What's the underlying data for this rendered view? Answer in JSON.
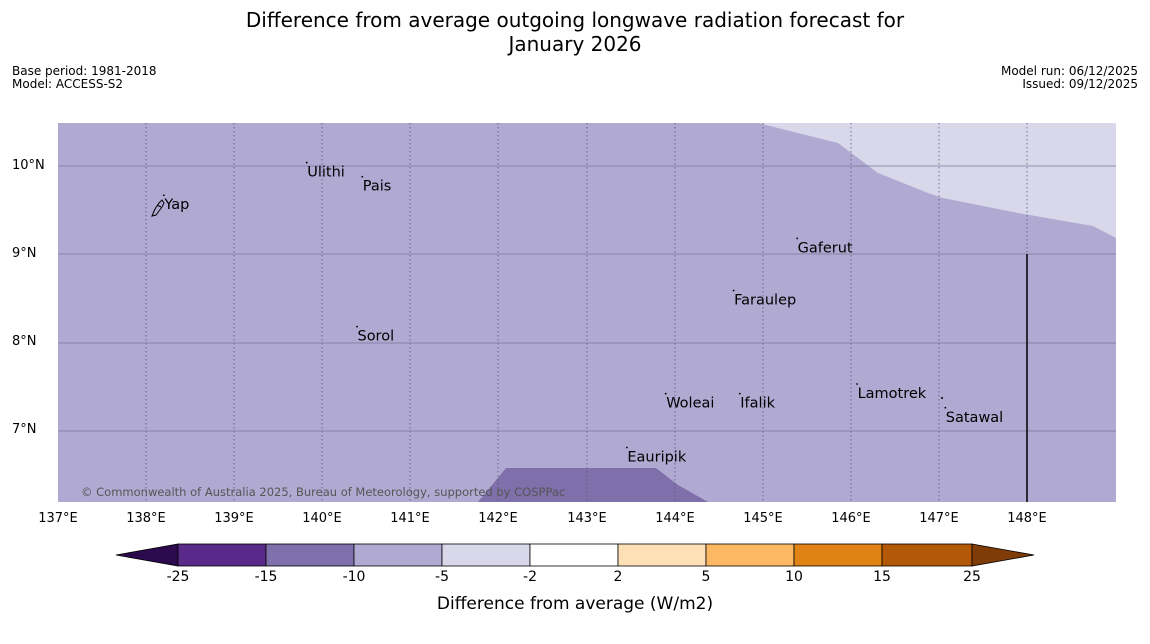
{
  "title_line1": "Difference from average outgoing longwave radiation forecast for",
  "title_line2": "January 2026",
  "meta_left": [
    "Base period: 1981-2018",
    "Model: ACCESS-S2"
  ],
  "meta_right": [
    "Model run: 06/12/2025",
    "Issued: 09/12/2025"
  ],
  "lat_ticks": [
    "10°N",
    "9°N",
    "8°N",
    "7°N"
  ],
  "lon_ticks": [
    "137°E",
    "138°E",
    "139°E",
    "140°E",
    "141°E",
    "142°E",
    "143°E",
    "144°E",
    "145°E",
    "146°E",
    "147°E",
    "148°E"
  ],
  "places": [
    {
      "name": "Ulithi",
      "lon": 139.82,
      "lat": 9.88
    },
    {
      "name": "Pais",
      "lon": 140.45,
      "lat": 9.72
    },
    {
      "name": "Yap",
      "lon": 138.2,
      "lat": 9.51
    },
    {
      "name": "Gaferut",
      "lon": 145.38,
      "lat": 9.02
    },
    {
      "name": "Faraulep",
      "lon": 144.66,
      "lat": 8.43
    },
    {
      "name": "Sorol",
      "lon": 140.39,
      "lat": 8.02
    },
    {
      "name": "Lamotrek",
      "lon": 146.06,
      "lat": 7.37
    },
    {
      "name": "Woleai",
      "lon": 143.89,
      "lat": 7.26
    },
    {
      "name": "Ifalik",
      "lon": 144.73,
      "lat": 7.26
    },
    {
      "name": "Satawal",
      "lon": 147.06,
      "lat": 7.1
    },
    {
      "name": "Eauripik",
      "lon": 143.45,
      "lat": 6.65
    }
  ],
  "copyright": "© Commonwealth of Australia 2025, Bureau of Meteorology, supported by COSPPac",
  "colorbar": {
    "title": "Difference from average (W/m2)",
    "labels": [
      "-25",
      "-15",
      "-10",
      "-5",
      "-2",
      "2",
      "5",
      "10",
      "15",
      "25"
    ],
    "colors": [
      "#2d0a4e",
      "#5a2a8a",
      "#7f6fab",
      "#b0aad2",
      "#d8d8ea",
      "#ffffff",
      "#fee0b6",
      "#fdb863",
      "#e08214",
      "#b35806",
      "#7f3b08"
    ]
  },
  "colors": {
    "band_minus5_minus10": "#b0aad2",
    "band_minus2_minus5": "#d8d8ea",
    "band_minus10_minus15": "#7f6fab"
  }
}
